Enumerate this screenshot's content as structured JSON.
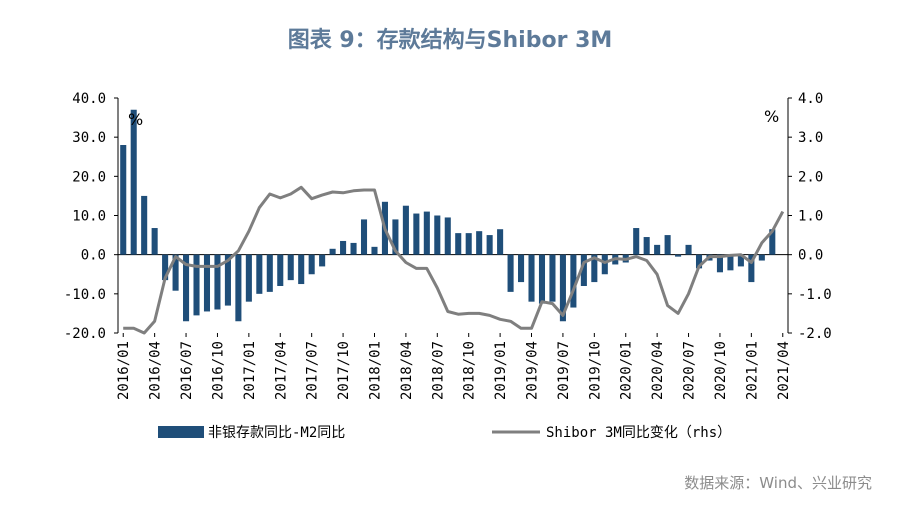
{
  "title": "图表 9：存款结构与Shibor 3M",
  "source": "数据来源：Wind、兴业研究",
  "chart_data": {
    "type": "bar+line",
    "y_left": {
      "unit": "%",
      "ylim": [
        -20,
        40
      ],
      "ticks": [
        "40.0",
        "30.0",
        "20.0",
        "10.0",
        "0.0",
        "-10.0",
        "-20.0"
      ],
      "tick_values": [
        40,
        30,
        20,
        10,
        0,
        -10,
        -20
      ]
    },
    "y_right": {
      "unit": "%",
      "ylim": [
        -2,
        4
      ],
      "ticks": [
        "4.0",
        "3.0",
        "2.0",
        "1.0",
        "0.0",
        "-1.0",
        "-2.0"
      ],
      "tick_values": [
        4,
        3,
        2,
        1,
        0,
        -1,
        -2
      ]
    },
    "x_tick_labels": [
      "2016/01",
      "2016/04",
      "2016/07",
      "2016/10",
      "2017/01",
      "2017/04",
      "2017/07",
      "2017/10",
      "2018/01",
      "2018/04",
      "2018/07",
      "2018/10",
      "2019/01",
      "2019/04",
      "2019/07",
      "2019/10",
      "2020/01",
      "2020/04",
      "2020/07",
      "2020/10",
      "2021/01",
      "2021/04"
    ],
    "months": [
      "2016/01",
      "2016/02",
      "2016/03",
      "2016/04",
      "2016/05",
      "2016/06",
      "2016/07",
      "2016/08",
      "2016/09",
      "2016/10",
      "2016/11",
      "2016/12",
      "2017/01",
      "2017/02",
      "2017/03",
      "2017/04",
      "2017/05",
      "2017/06",
      "2017/07",
      "2017/08",
      "2017/09",
      "2017/10",
      "2017/11",
      "2017/12",
      "2018/01",
      "2018/02",
      "2018/03",
      "2018/04",
      "2018/05",
      "2018/06",
      "2018/07",
      "2018/08",
      "2018/09",
      "2018/10",
      "2018/11",
      "2018/12",
      "2019/01",
      "2019/02",
      "2019/03",
      "2019/04",
      "2019/05",
      "2019/06",
      "2019/07",
      "2019/08",
      "2019/09",
      "2019/10",
      "2019/11",
      "2019/12",
      "2020/01",
      "2020/02",
      "2020/03",
      "2020/04",
      "2020/05",
      "2020/06",
      "2020/07",
      "2020/08",
      "2020/09",
      "2020/10",
      "2020/11",
      "2020/12",
      "2021/01",
      "2021/02",
      "2021/03",
      "2021/04"
    ],
    "series": [
      {
        "name": "非银存款同比-M2同比",
        "type": "bar",
        "axis": "left",
        "color": "#1f4e79",
        "values": [
          28,
          37,
          15,
          6.8,
          -6.5,
          -9.2,
          -17,
          -15.5,
          -14.5,
          -14,
          -13,
          -17,
          -12,
          -10,
          -9.5,
          -8,
          -6.5,
          -7.5,
          -5,
          -3,
          1.5,
          3.5,
          3,
          9,
          2,
          13.5,
          9,
          12.5,
          10.5,
          11,
          10,
          9.5,
          5.5,
          5.5,
          6,
          5,
          6.5,
          -9.5,
          -7,
          -12,
          -12.5,
          -12,
          -17,
          -13.5,
          -8,
          -7,
          -5,
          -2.5,
          -2,
          6.8,
          4.5,
          2.5,
          5,
          -0.5,
          2.5,
          -3.5,
          -1.5,
          -4.5,
          -4,
          -3,
          -7,
          -1.5,
          6.5,
          0
        ]
      },
      {
        "name": "Shibor 3M同比变化（rhs）",
        "type": "line",
        "axis": "right",
        "color": "#7f7f7f",
        "values": [
          -1.88,
          -1.88,
          -2.0,
          -1.7,
          -0.6,
          -0.05,
          -0.25,
          -0.3,
          -0.3,
          -0.3,
          -0.15,
          0.1,
          0.6,
          1.2,
          1.55,
          1.45,
          1.55,
          1.72,
          1.43,
          1.52,
          1.6,
          1.58,
          1.63,
          1.65,
          1.65,
          0.65,
          0.1,
          -0.2,
          -0.35,
          -0.35,
          -0.85,
          -1.45,
          -1.52,
          -1.5,
          -1.5,
          -1.55,
          -1.65,
          -1.7,
          -1.88,
          -1.88,
          -1.2,
          -1.25,
          -1.55,
          -0.9,
          -0.2,
          -0.08,
          -0.2,
          -0.1,
          -0.12,
          -0.05,
          -0.15,
          -0.5,
          -1.3,
          -1.5,
          -1.0,
          -0.3,
          -0.05,
          -0.05,
          -0.02,
          0.0,
          -0.2,
          0.3,
          0.6,
          1.1
        ]
      }
    ],
    "legend": [
      "非银存款同比-M2同比",
      "Shibor 3M同比变化（rhs）"
    ],
    "legend_position": "bottom",
    "grid": false
  }
}
